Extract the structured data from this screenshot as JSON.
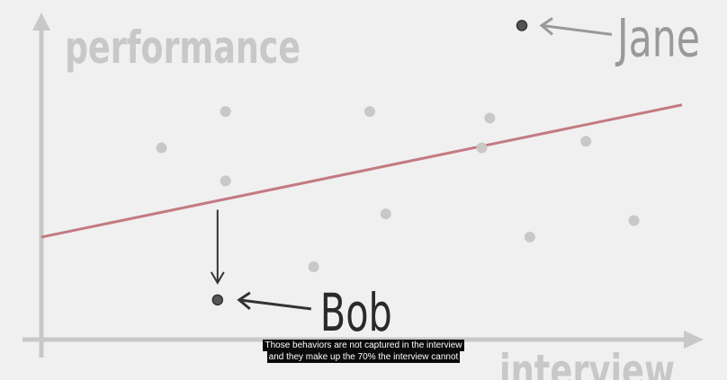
{
  "chart_data": {
    "type": "scatter",
    "xlabel": "interview",
    "ylabel": "performance",
    "grid": false,
    "points": [
      {
        "x": 1.5,
        "y": 5.8
      },
      {
        "x": 2.3,
        "y": 6.9
      },
      {
        "x": 2.3,
        "y": 4.8
      },
      {
        "x": 3.4,
        "y": 2.2
      },
      {
        "x": 4.1,
        "y": 6.9
      },
      {
        "x": 4.3,
        "y": 3.8
      },
      {
        "x": 5.6,
        "y": 6.7
      },
      {
        "x": 5.5,
        "y": 5.8
      },
      {
        "x": 6.1,
        "y": 3.1
      },
      {
        "x": 6.8,
        "y": 6.0
      },
      {
        "x": 7.4,
        "y": 3.6
      }
    ],
    "highlighted": [
      {
        "name": "Jane",
        "x": 6.0,
        "y": 9.5
      },
      {
        "name": "Bob",
        "x": 2.2,
        "y": 1.2
      }
    ],
    "trend_line": {
      "x": [
        0,
        8
      ],
      "y": [
        3.1,
        7.1
      ],
      "color": "#c47a82"
    },
    "colors": {
      "point": "#c8c8c8",
      "axis": "#c8c8c8",
      "highlight": "#555555"
    }
  },
  "captions": [
    "Those behaviors are not captured in the interview",
    "and they make up the 70% the interview cannot"
  ]
}
